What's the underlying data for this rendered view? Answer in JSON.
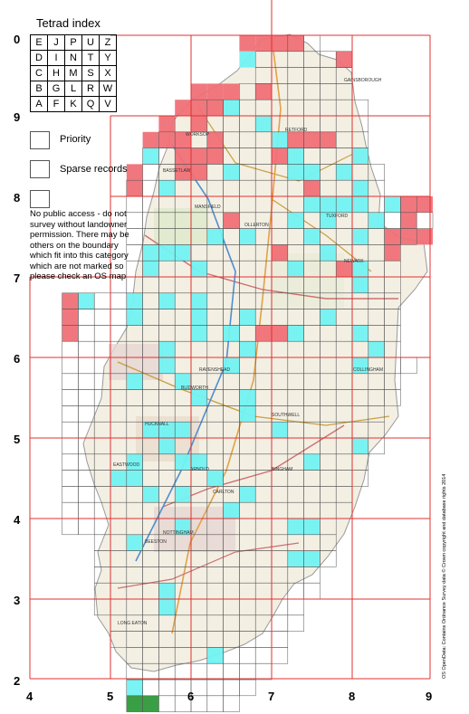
{
  "legend": {
    "title": "Tetrad index",
    "tetrad_rows": [
      [
        "E",
        "J",
        "P",
        "U",
        "Z"
      ],
      [
        "D",
        "I",
        "N",
        "T",
        "Y"
      ],
      [
        "C",
        "H",
        "M",
        "S",
        "X"
      ],
      [
        "B",
        "G",
        "L",
        "R",
        "W"
      ],
      [
        "A",
        "F",
        "K",
        "Q",
        "V"
      ]
    ],
    "priority_label": "Priority",
    "sparse_label": "Sparse records",
    "no_access_note": "No public access - do not survey without landowner permission.  There may be others on the boundary which fit into this category which are not marked so please check an OS map"
  },
  "axes": {
    "x_labels": [
      "4",
      "5",
      "6",
      "7",
      "8",
      "9"
    ],
    "y_labels": [
      "0",
      "9",
      "8",
      "7",
      "6",
      "5",
      "4",
      "3",
      "2"
    ]
  },
  "colors": {
    "priority": "#f07077",
    "sparse": "#72f2f2",
    "no_access": "#2f9a3a",
    "grid_red": "#e03030",
    "tetrad_line": "#555555",
    "map_base": "#f3efe3"
  },
  "map": {
    "place_labels": [
      "SOUTHWELL",
      "RETFORD",
      "NEWARK",
      "MANSFIELD",
      "NOTTINGHAM",
      "CARLTON",
      "ARNOLD",
      "HUCKNALL",
      "WORKSOP",
      "BINGHAM",
      "BEESTON",
      "LONG EATON",
      "BASSETLAW",
      "TUXFORD",
      "OLLERTON",
      "BLIDWORTH",
      "RAVENSHEAD",
      "COLLINGHAM",
      "GAINSBOROUGH",
      "EASTWOOD"
    ]
  },
  "copyright": "OS OpenData: Contains Ordnance Survey data © Crown copyright and database rights 2014"
}
